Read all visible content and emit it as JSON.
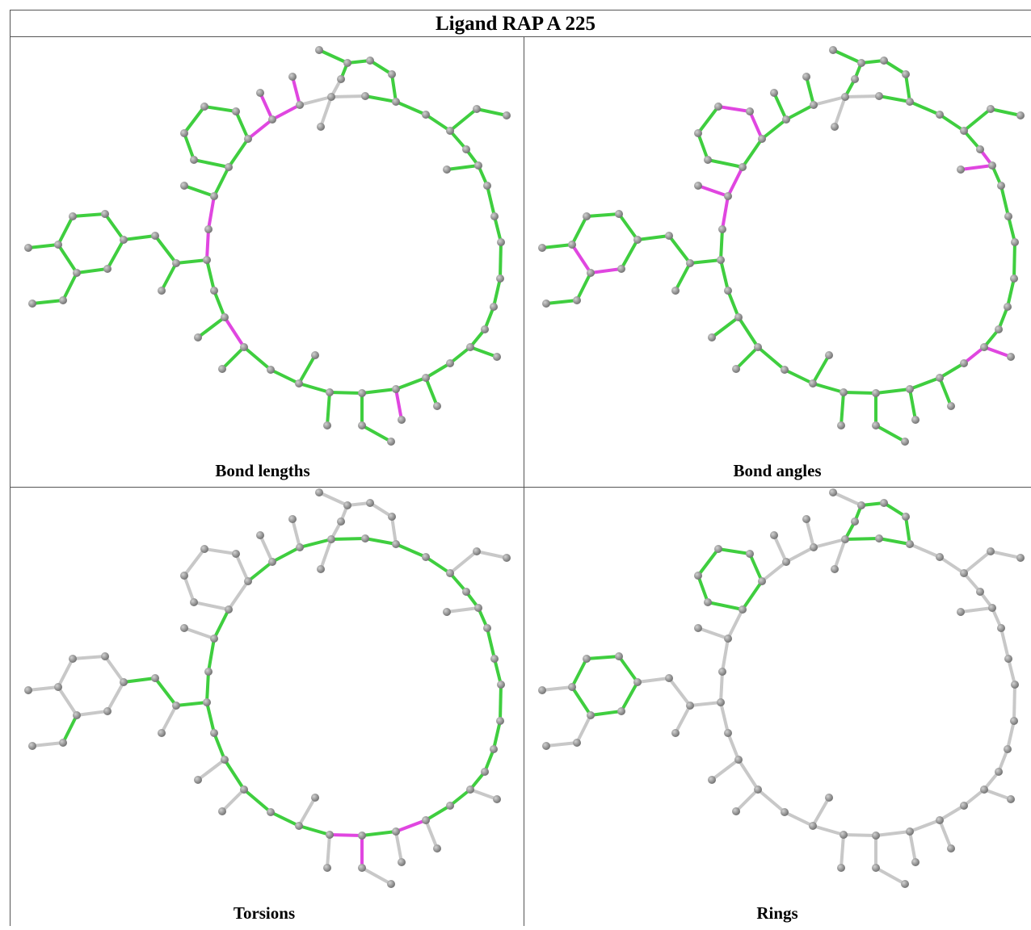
{
  "title": "Ligand RAP A 225",
  "panels": [
    {
      "caption": "Bond lengths"
    },
    {
      "caption": "Bond angles"
    },
    {
      "caption": "Torsions"
    },
    {
      "caption": "Rings"
    }
  ]
}
